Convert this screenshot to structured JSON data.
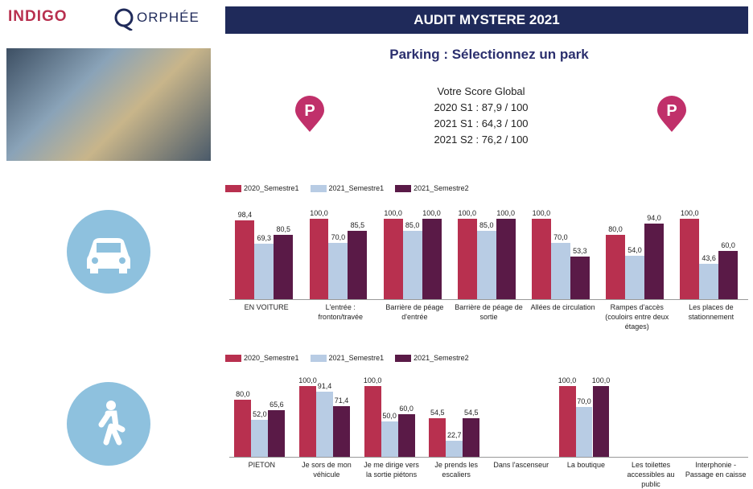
{
  "header": {
    "brand": "INDIGO",
    "partner": "ORPHÉE",
    "banner": "AUDIT MYSTERE 2021"
  },
  "subtitle": "Parking : Sélectionnez un park",
  "score": {
    "title": "Votre Score Global",
    "lines": [
      "2020 S1 :  87,9 / 100",
      "2021 S1 :  64,3 / 100",
      "2021 S2 :  76,2 / 100"
    ]
  },
  "chart_data": [
    {
      "type": "bar",
      "categories": [
        "EN VOITURE",
        "L'entrée : fronton/travée",
        "Barrière de péage d'entrée",
        "Barrière de péage de sortie",
        "Allées de circulation",
        "Rampes d'accès (couloirs entre deux étages)",
        "Les places de stationnement"
      ],
      "series": [
        {
          "name": "2020_Semestre1",
          "color": "#b8304f",
          "values": [
            98.4,
            100,
            100,
            100,
            100,
            80,
            100
          ],
          "value_labels": [
            "98,4",
            "100,0",
            "100,0",
            "100,0",
            "100,0",
            "80,0",
            "100,0"
          ]
        },
        {
          "name": "2021_Semestre1",
          "color": "#b8cce4",
          "values": [
            69.3,
            70,
            85,
            85,
            70,
            54,
            43.6
          ],
          "value_labels": [
            "69,3",
            "70,0",
            "85,0",
            "85,0",
            "70,0",
            "54,0",
            "43,6"
          ]
        },
        {
          "name": "2021_Semestre2",
          "color": "#5a1a47",
          "values": [
            80.5,
            85.5,
            100,
            100,
            53.3,
            94,
            60
          ],
          "value_labels": [
            "80,5",
            "85,5",
            "100,0",
            "100,0",
            "53,3",
            "94,0",
            "60,0"
          ]
        }
      ],
      "ylim": [
        0,
        110
      ]
    },
    {
      "type": "bar",
      "categories": [
        "PIETON",
        "Je sors de mon véhicule",
        "Je me dirige vers la sortie piétons",
        "Je prends les escaliers",
        "Dans l'ascenseur",
        "La boutique",
        "Les toilettes accessibles au public",
        "Interphonie - Passage en caisse"
      ],
      "series": [
        {
          "name": "2020_Semestre1",
          "color": "#b8304f",
          "values": [
            80,
            100,
            100,
            54.5,
            null,
            100,
            null,
            null
          ],
          "value_labels": [
            "80,0",
            "100,0",
            "100,0",
            "54,5",
            null,
            "100,0",
            null,
            null
          ]
        },
        {
          "name": "2021_Semestre1",
          "color": "#b8cce4",
          "values": [
            52,
            91.4,
            50,
            22.7,
            null,
            70,
            null,
            null
          ],
          "value_labels": [
            "52,0",
            "91,4",
            "50,0",
            "22,7",
            null,
            "70,0",
            null,
            null
          ]
        },
        {
          "name": "2021_Semestre2",
          "color": "#5a1a47",
          "values": [
            65.6,
            71.4,
            60,
            54.5,
            null,
            100,
            null,
            null
          ],
          "value_labels": [
            "65,6",
            "71,4",
            "60,0",
            "54,5",
            null,
            "100,0",
            null,
            null
          ]
        }
      ],
      "ylim": [
        0,
        110
      ]
    }
  ]
}
